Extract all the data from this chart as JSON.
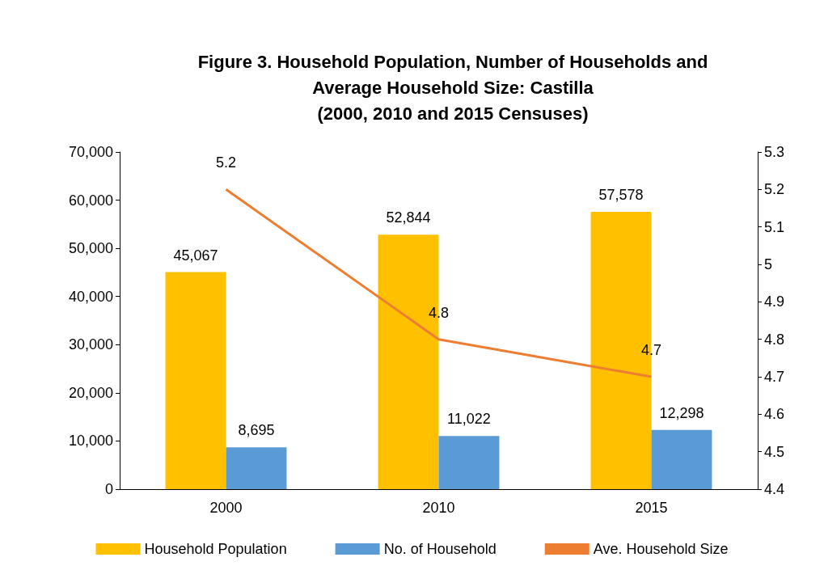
{
  "chart_data": {
    "type": "bar",
    "title": "Figure 3. Household Population, Number of Households and\nAverage Household Size: Castilla\n(2000, 2010 and 2015 Censuses)",
    "categories": [
      "2000",
      "2010",
      "2015"
    ],
    "series": [
      {
        "name": "Household Population",
        "color": "#ffc000",
        "values": [
          45067,
          52844,
          57578
        ],
        "value_labels": [
          "45,067",
          "52,844",
          "57,578"
        ]
      },
      {
        "name": "No. of Household",
        "color": "#5b9bd5",
        "values": [
          8695,
          11022,
          12298
        ],
        "value_labels": [
          "8,695",
          "11,022",
          "12,298"
        ]
      },
      {
        "name": "Ave. Household Size",
        "type": "line",
        "axis": "y2",
        "color": "#ed7d31",
        "values": [
          5.2,
          4.8,
          4.7
        ],
        "value_labels": [
          "5.2",
          "4.8",
          "4.7"
        ]
      }
    ],
    "ylim": [
      0,
      70000
    ],
    "yticks": [
      0,
      {
        "value": 10000,
        "label": "10,000"
      },
      {
        "value": 20000,
        "label": "20,000"
      },
      {
        "value": 30000,
        "label": "30,000"
      },
      {
        "value": 40000,
        "label": "40,000"
      },
      {
        "value": 50000,
        "label": "50,000"
      },
      {
        "value": 60000,
        "label": "60,000"
      },
      {
        "value": 70000,
        "label": "70,000"
      }
    ],
    "y2lim": [
      4.4,
      5.3
    ],
    "y2ticks": [
      4.4,
      4.5,
      4.6,
      4.7,
      4.8,
      4.9,
      5,
      5.1,
      5.2,
      5.3
    ],
    "grid": false,
    "legend": "bottom",
    "marker": "none",
    "line_style": "solid"
  }
}
